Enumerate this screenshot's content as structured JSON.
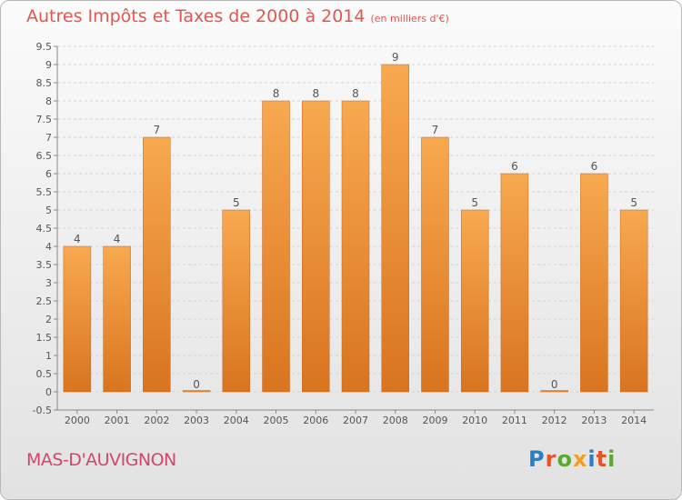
{
  "title": "Autres Impôts et Taxes de 2000 à 2014",
  "title_unit": "(en milliers d'€)",
  "commune": "MAS-D'AUVIGNON",
  "logo": {
    "text": "Proxiti",
    "colors": [
      "#2a7fc0",
      "#e8542a",
      "#5aaa2e",
      "#f0a020",
      "#2a7fc0",
      "#e8542a",
      "#5aaa2e"
    ]
  },
  "colors": {
    "bar_top": "#f8a950",
    "bar_bottom": "#d9741f",
    "title": "#e0574f",
    "commune": "#d2466a"
  },
  "chart_data": {
    "type": "bar",
    "title": "Autres Impôts et Taxes de 2000 à 2014",
    "xlabel": "",
    "ylabel": "",
    "categories": [
      "2000",
      "2001",
      "2002",
      "2003",
      "2004",
      "2005",
      "2006",
      "2007",
      "2008",
      "2009",
      "2010",
      "2011",
      "2012",
      "2013",
      "2014"
    ],
    "values": [
      4,
      4,
      7,
      0,
      5,
      8,
      8,
      8,
      9,
      7,
      5,
      6,
      0,
      6,
      5
    ],
    "ylim": [
      -0.5,
      9.5
    ],
    "yticks": [
      -0.5,
      0,
      0.5,
      1,
      1.5,
      2,
      2.5,
      3,
      3.5,
      4,
      4.5,
      5,
      5.5,
      6,
      6.5,
      7,
      7.5,
      8,
      8.5,
      9,
      9.5
    ],
    "grid": true
  }
}
